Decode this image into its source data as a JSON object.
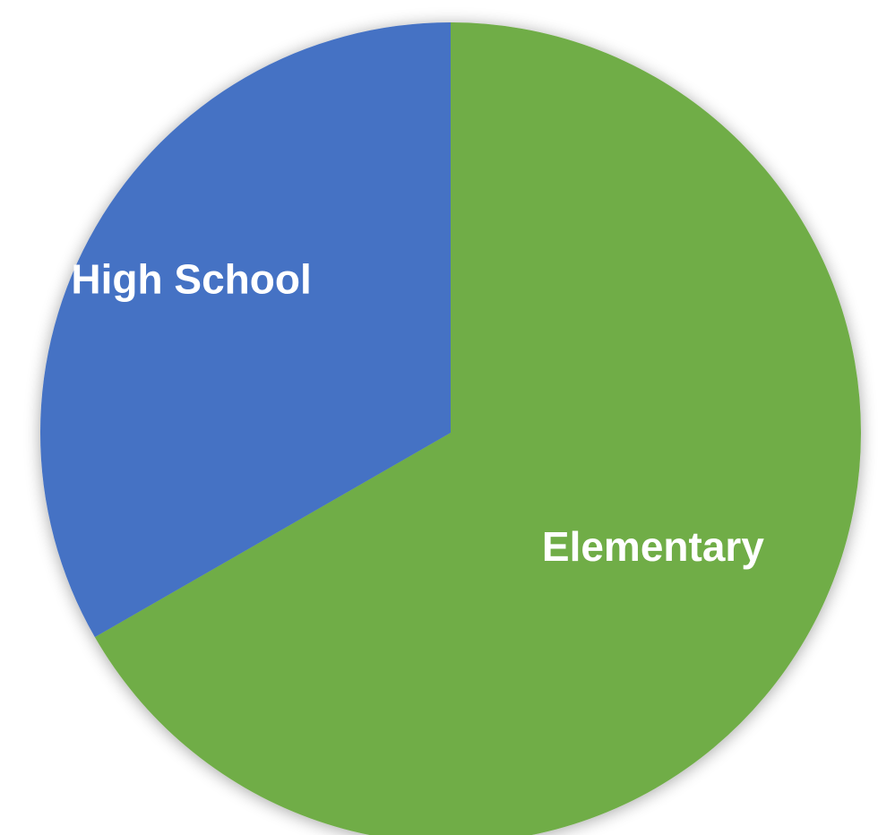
{
  "chart_data": {
    "type": "pie",
    "title": "",
    "categories": [
      "Elementary",
      "High School"
    ],
    "values": [
      66.7,
      33.3
    ],
    "colors": [
      "#70AD47",
      "#4472C4"
    ],
    "start_angle_deg": 0,
    "direction": "clockwise",
    "legend": "none",
    "data_labels": "category names inside slices"
  }
}
